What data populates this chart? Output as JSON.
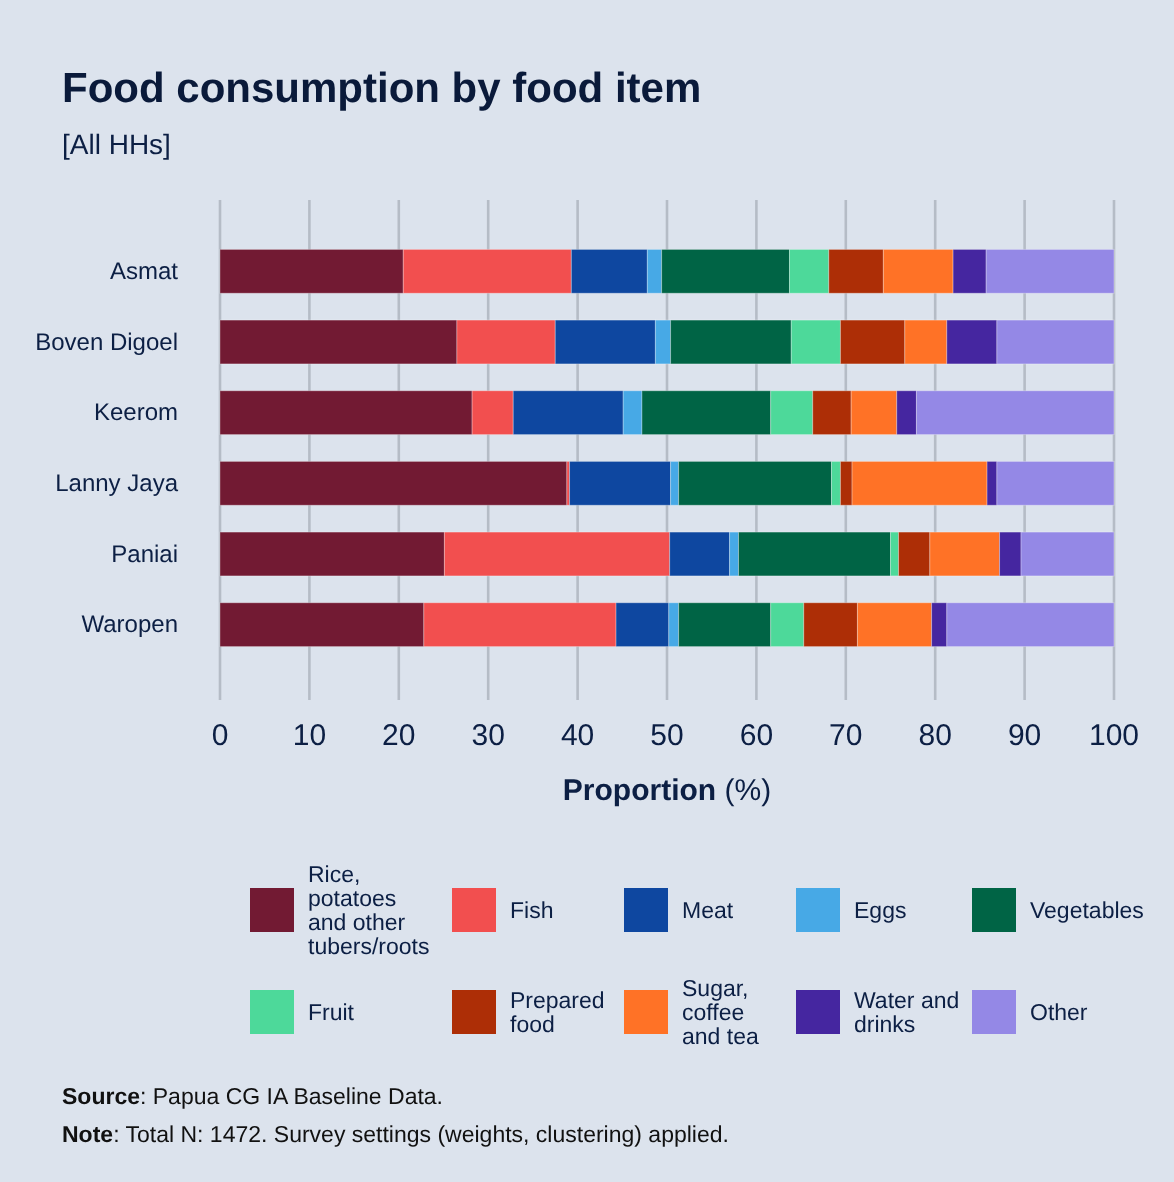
{
  "chart_data": {
    "type": "bar",
    "orientation": "horizontal",
    "stacked": true,
    "title": "Food consumption by food item",
    "subtitle": "[All HHs]",
    "xlabel": "Proportion (%)",
    "categories": [
      "Asmat",
      "Boven Digoel",
      "Keerom",
      "Lanny Jaya",
      "Paniai",
      "Waropen"
    ],
    "series": [
      {
        "name": "Rice, potatoes and other tubers/roots",
        "color": "#721a33",
        "values": [
          20.5,
          26.5,
          28.2,
          38.8,
          25.1,
          22.8
        ]
      },
      {
        "name": "Fish",
        "color": "#f24f4f",
        "values": [
          18.8,
          11.0,
          4.6,
          0.3,
          25.2,
          21.5
        ]
      },
      {
        "name": "Meat",
        "color": "#0e47a0",
        "values": [
          8.5,
          11.2,
          12.3,
          11.3,
          6.7,
          5.9
        ]
      },
      {
        "name": "Eggs",
        "color": "#47a9e6",
        "values": [
          1.6,
          1.7,
          2.1,
          0.9,
          1.0,
          1.1
        ]
      },
      {
        "name": "Vegetables",
        "color": "#006445",
        "values": [
          14.3,
          13.5,
          14.4,
          17.1,
          17.0,
          10.3
        ]
      },
      {
        "name": "Fruit",
        "color": "#4dd99a",
        "values": [
          4.4,
          5.5,
          4.7,
          1.0,
          0.9,
          3.7
        ]
      },
      {
        "name": "Prepared food",
        "color": "#ad2e06",
        "values": [
          6.1,
          7.2,
          4.3,
          1.3,
          3.5,
          6.0
        ]
      },
      {
        "name": "Sugar, coffee and tea",
        "color": "#ff7226",
        "values": [
          7.8,
          4.7,
          5.1,
          15.1,
          7.8,
          8.3
        ]
      },
      {
        "name": "Water and drinks",
        "color": "#4526a0",
        "values": [
          3.7,
          5.6,
          2.2,
          1.1,
          2.4,
          1.7
        ]
      },
      {
        "name": "Other",
        "color": "#9488e6",
        "values": [
          14.3,
          13.1,
          22.1,
          13.1,
          10.4,
          18.7
        ]
      }
    ],
    "xlim": [
      0,
      100
    ],
    "xticks": [
      0,
      10,
      20,
      30,
      40,
      50,
      60,
      70,
      80,
      90,
      100
    ],
    "grid": "x",
    "legend": "bottom",
    "annotations": [
      "Source: Papua CG IA Baseline Data.",
      "Note: Total N: 1472. Survey settings (weights, clustering) applied."
    ]
  }
}
